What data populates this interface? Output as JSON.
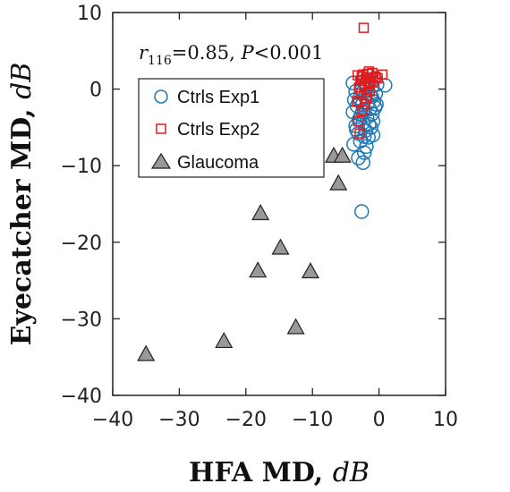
{
  "chart_data": {
    "type": "scatter",
    "xlabel": "HFA MD, ",
    "xlabel_unit": "dB",
    "ylabel": "Eyecatcher MD, ",
    "ylabel_unit": "dB",
    "xlim": [
      -40,
      10
    ],
    "ylim": [
      -40,
      10
    ],
    "xticks": [
      "−40",
      "−30",
      "−20",
      "−10",
      "0",
      "10"
    ],
    "yticks": [
      "−40",
      "−30",
      "−20",
      "−10",
      "0",
      "10"
    ],
    "annotation": {
      "r_symbol": "r",
      "r_subscript": "116",
      "r_rest": "=0.85, ",
      "p_symbol": "P",
      "p_rest": "<0.001"
    },
    "legend_placement": "upper-left",
    "series": [
      {
        "name": "Ctrls Exp1",
        "marker": "circle",
        "color": "#1f77b4",
        "points": [
          [
            -2.6,
            -16.0
          ],
          [
            -2.4,
            -9.6
          ],
          [
            -2.2,
            -8.3
          ],
          [
            -3.8,
            -7.2
          ],
          [
            -2.8,
            -6.8
          ],
          [
            -1.6,
            -6.3
          ],
          [
            -3.1,
            -5.8
          ],
          [
            -2.0,
            -5.4
          ],
          [
            -1.2,
            -5.0
          ],
          [
            -3.5,
            -4.8
          ],
          [
            -2.4,
            -4.4
          ],
          [
            -0.9,
            -4.2
          ],
          [
            -3.0,
            -4.0
          ],
          [
            -1.8,
            -3.7
          ],
          [
            -2.7,
            -3.4
          ],
          [
            -1.0,
            -3.2
          ],
          [
            -3.9,
            -3.0
          ],
          [
            -2.2,
            -2.8
          ],
          [
            -1.4,
            -2.6
          ],
          [
            -0.6,
            -2.4
          ],
          [
            -3.3,
            -2.2
          ],
          [
            -2.5,
            -2.0
          ],
          [
            -1.7,
            -1.8
          ],
          [
            -0.8,
            -1.6
          ],
          [
            -3.7,
            -1.4
          ],
          [
            -2.9,
            -1.2
          ],
          [
            -2.1,
            -1.0
          ],
          [
            -1.3,
            -0.8
          ],
          [
            -0.5,
            -0.6
          ],
          [
            -3.5,
            -0.3
          ],
          [
            -2.6,
            -0.1
          ],
          [
            -1.8,
            0.2
          ],
          [
            -1.0,
            0.4
          ],
          [
            -0.3,
            0.6
          ],
          [
            -3.9,
            0.8
          ],
          [
            -2.3,
            1.0
          ],
          [
            -1.5,
            1.2
          ],
          [
            -0.7,
            1.4
          ],
          [
            -3.1,
            -9.0
          ],
          [
            -1.9,
            -7.5
          ],
          [
            -0.9,
            -6.0
          ],
          [
            -2.8,
            -1.5
          ],
          [
            -1.5,
            -4.6
          ],
          [
            -2.5,
            -3.0
          ],
          [
            -1.1,
            -1.0
          ],
          [
            -3.4,
            -5.3
          ],
          [
            -2.0,
            0.8
          ],
          [
            -0.4,
            -2.0
          ],
          [
            0.9,
            0.5
          ],
          [
            -2.2,
            -6.2
          ]
        ]
      },
      {
        "name": "Ctrls Exp2",
        "marker": "square",
        "color": "#e31a1c",
        "points": [
          [
            -2.3,
            8.0
          ],
          [
            -2.9,
            -5.8
          ],
          [
            -3.1,
            -4.2
          ],
          [
            -2.5,
            -2.8
          ],
          [
            -3.3,
            -1.6
          ],
          [
            -1.9,
            -1.2
          ],
          [
            -2.7,
            -0.6
          ],
          [
            -1.4,
            -0.3
          ],
          [
            -3.0,
            0.2
          ],
          [
            -2.2,
            0.4
          ],
          [
            -1.6,
            0.7
          ],
          [
            -0.9,
            0.9
          ],
          [
            -2.8,
            1.1
          ],
          [
            -2.0,
            1.3
          ],
          [
            -1.2,
            1.5
          ],
          [
            -0.5,
            1.6
          ],
          [
            -3.2,
            1.8
          ],
          [
            -2.4,
            1.9
          ],
          [
            -1.7,
            2.0
          ],
          [
            -1.0,
            2.1
          ],
          [
            -1.5,
            2.3
          ],
          [
            -2.6,
            1.6
          ],
          [
            -0.2,
            1.4
          ],
          [
            0.5,
            1.9
          ],
          [
            -1.8,
            -0.8
          ],
          [
            -2.1,
            -2.0
          ],
          [
            -1.3,
            1.0
          ]
        ]
      },
      {
        "name": "Glaucoma",
        "marker": "triangle",
        "color": "#999999",
        "points": [
          [
            -35.0,
            -34.6
          ],
          [
            -23.3,
            -32.9
          ],
          [
            -12.5,
            -31.1
          ],
          [
            -18.2,
            -23.7
          ],
          [
            -14.8,
            -20.7
          ],
          [
            -10.3,
            -23.8
          ],
          [
            -17.8,
            -16.2
          ],
          [
            -6.1,
            -12.3
          ],
          [
            -6.8,
            -8.7
          ],
          [
            -5.5,
            -8.7
          ]
        ]
      }
    ]
  }
}
